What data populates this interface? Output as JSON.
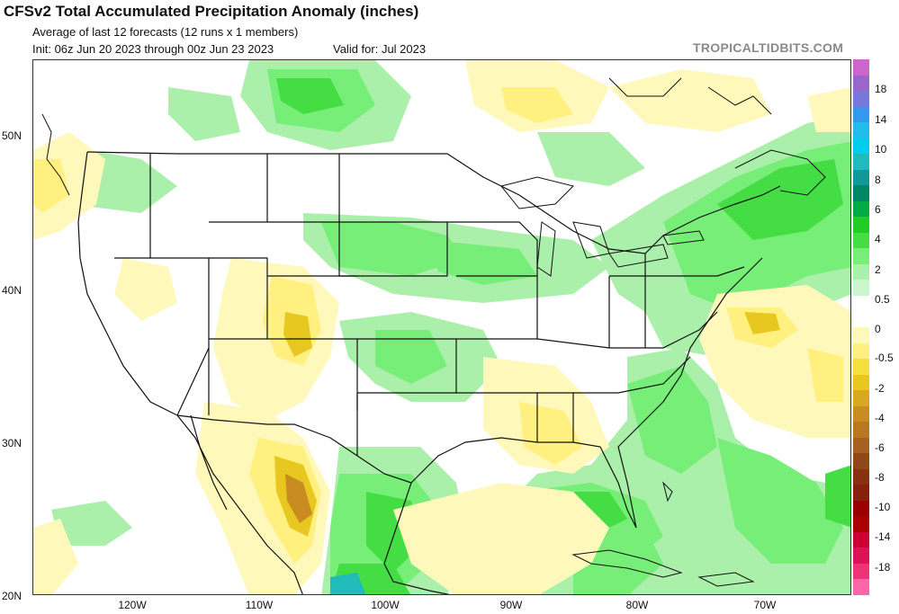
{
  "header": {
    "title": "CFSv2 Total Accumulated Precipitation Anomaly (inches)",
    "subtitle": "Average of last 12 forecasts (12 runs x 1 members)",
    "init": "Init: 06z Jun 20 2023 through 00z Jun 23 2023",
    "valid": "Valid for: Jul 2023",
    "brand": "TROPICALTIDBITS.COM"
  },
  "map": {
    "lat_labels": [
      "50N",
      "40N",
      "30N",
      "20N"
    ],
    "lon_labels": [
      "120W",
      "110W",
      "100W",
      "90W",
      "80W",
      "70W"
    ]
  },
  "colorbar": {
    "labels": [
      "18",
      "14",
      "10",
      "8",
      "6",
      "4",
      "2",
      "0.5",
      "0",
      "-0.5",
      "-2",
      "-4",
      "-6",
      "-8",
      "-10",
      "-14",
      "-18"
    ],
    "colors": [
      "#cc66cc",
      "#9966cc",
      "#7777dd",
      "#3399ee",
      "#22bbee",
      "#00ccee",
      "#22bbbb",
      "#119999",
      "#008866",
      "#00aa44",
      "#22cc22",
      "#44dd44",
      "#77ee77",
      "#aaf0aa",
      "#ccf5cc",
      "#ffffff",
      "#ffffff",
      "#fff8bb",
      "#fff080",
      "#f5e040",
      "#e8c820",
      "#d8a820",
      "#c88c20",
      "#b87820",
      "#a86020",
      "#904818",
      "#883010",
      "#882010",
      "#990000",
      "#aa0000",
      "#cc0033",
      "#dd1155",
      "#ee3377",
      "#ff66aa"
    ]
  }
}
